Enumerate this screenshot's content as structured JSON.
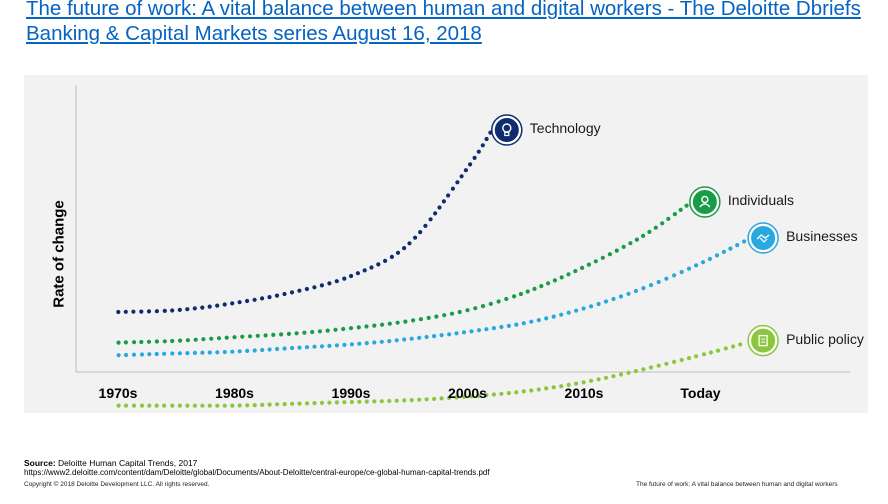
{
  "title": {
    "text": "The future of work: A vital balance between human and digital workers - The Deloitte Dbriefs Banking & Capital Markets series August 16, 2018"
  },
  "chart_data": {
    "type": "line",
    "ylabel": "Rate of change",
    "xlabel": "",
    "categories": [
      "1970s",
      "1980s",
      "1990s",
      "2000s",
      "2010s",
      "Today"
    ],
    "grid": false,
    "legend": "inline-end-labels",
    "line_style": "dotted",
    "series": [
      {
        "name": "Technology",
        "color": "#0f2d6e",
        "icon": "lightbulb-icon",
        "x": [
          0,
          0.5,
          1,
          1.5,
          2,
          2.5,
          3,
          3.2
        ],
        "values": [
          0.0,
          0.01,
          0.05,
          0.11,
          0.2,
          0.38,
          0.8,
          1.0
        ]
      },
      {
        "name": "Individuals",
        "color": "#1a9b47",
        "icon": "person-icon",
        "x": [
          0,
          0.5,
          1,
          1.5,
          2,
          2.5,
          3,
          3.5,
          4,
          4.5,
          4.9
        ],
        "values": [
          -0.17,
          -0.16,
          -0.14,
          -0.12,
          -0.09,
          -0.05,
          0.01,
          0.11,
          0.25,
          0.42,
          0.6
        ]
      },
      {
        "name": "Businesses",
        "color": "#29a8e0",
        "icon": "handshake-icon",
        "x": [
          0,
          0.5,
          1,
          1.5,
          2,
          2.5,
          3,
          3.5,
          4,
          4.5,
          5,
          5.4
        ],
        "values": [
          -0.24,
          -0.23,
          -0.22,
          -0.2,
          -0.18,
          -0.15,
          -0.11,
          -0.06,
          0.02,
          0.13,
          0.27,
          0.4
        ]
      },
      {
        "name": "Public policy",
        "color": "#8cc63f",
        "icon": "document-icon",
        "x": [
          0,
          0.5,
          1,
          1.5,
          2,
          2.5,
          3,
          3.5,
          4,
          4.5,
          5,
          5.4
        ],
        "values": [
          -0.52,
          -0.52,
          -0.52,
          -0.51,
          -0.5,
          -0.49,
          -0.47,
          -0.44,
          -0.39,
          -0.32,
          -0.24,
          -0.17
        ]
      }
    ]
  },
  "footer": {
    "source_label": "Source:",
    "source_text": "Deloitte Human Capital Trends, 2017",
    "source_url": "https://www2.deloitte.com/content/dam/Deloitte/global/Documents/About-Deloitte/central-europe/ce-global-human-capital-trends.pdf",
    "copyright": "Copyright © 2018 Deloitte Development LLC. All rights reserved.",
    "right_text": "The future of work: A vital balance between human and digital workers"
  }
}
